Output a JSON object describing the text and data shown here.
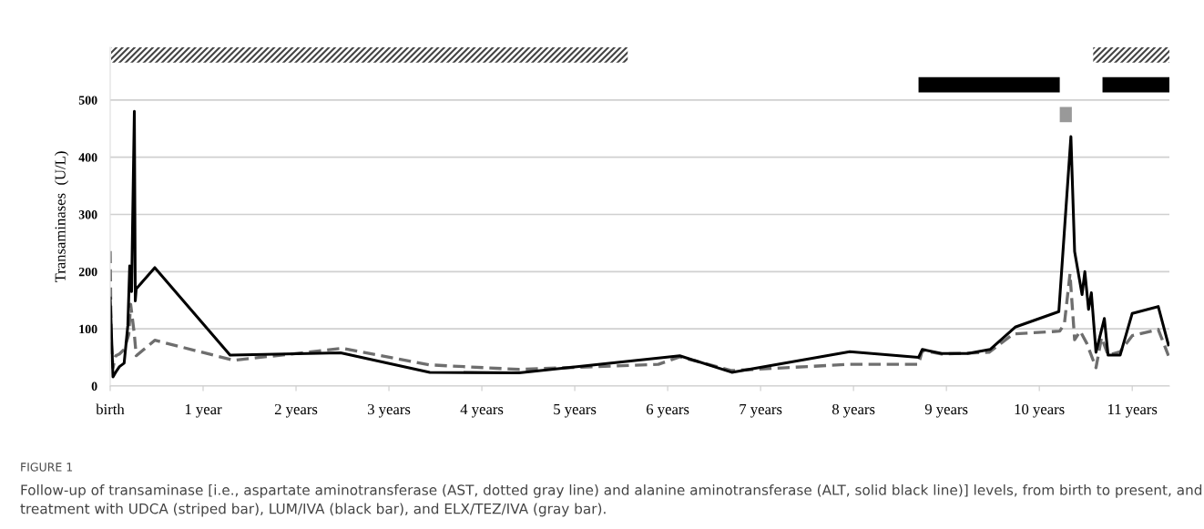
{
  "chart_data": {
    "type": "line",
    "ylabel": "Transaminases  (U/L)",
    "xlim": [
      0,
      11.4
    ],
    "ylim": [
      0,
      592
    ],
    "xticks": [
      {
        "value": 0,
        "label": "birth"
      },
      {
        "value": 1,
        "label": "1 year"
      },
      {
        "value": 2,
        "label": "2 years"
      },
      {
        "value": 3,
        "label": "3 years"
      },
      {
        "value": 4,
        "label": "4 years"
      },
      {
        "value": 5,
        "label": "5 years"
      },
      {
        "value": 6,
        "label": "6 years"
      },
      {
        "value": 7,
        "label": "7 years"
      },
      {
        "value": 8,
        "label": "8 years"
      },
      {
        "value": 9,
        "label": "9 years"
      },
      {
        "value": 10,
        "label": "10 years"
      },
      {
        "value": 11,
        "label": "11 years"
      }
    ],
    "yticks": [
      0,
      100,
      200,
      300,
      400,
      500
    ],
    "grid": "y",
    "legend": false,
    "marker": "none",
    "series": [
      {
        "color": "#6e6e6e",
        "line_style": "dashed",
        "x": [
          0,
          0.01,
          0.03,
          0.06,
          0.1,
          0.15,
          0.2,
          0.22,
          0.26,
          0.28,
          0.48,
          1.33,
          2.5,
          3.44,
          4.4,
          5.9,
          6.13,
          6.69,
          7.96,
          8.7,
          8.74,
          8.95,
          9.46,
          9.72,
          10.22,
          10.27,
          10.33,
          10.38,
          10.44,
          10.51,
          10.61,
          10.67,
          10.74,
          10.87,
          11.0,
          11.28,
          11.39
        ],
        "values": [
          236,
          80,
          32,
          53,
          56,
          64,
          90,
          143,
          90,
          53,
          80,
          45,
          66,
          37,
          29,
          38,
          51,
          27,
          38,
          38,
          62,
          56,
          59,
          91,
          96,
          109,
          196,
          81,
          96,
          75,
          32,
          85,
          54,
          60,
          88,
          99,
          53
        ]
      },
      {
        "color": "#000000",
        "line_style": "solid",
        "x": [
          0,
          0.03,
          0.07,
          0.1,
          0.15,
          0.19,
          0.21,
          0.23,
          0.26,
          0.27,
          0.28,
          0.48,
          1.29,
          2.48,
          3.44,
          4.4,
          6.13,
          6.69,
          7.96,
          8.7,
          8.74,
          8.95,
          9.23,
          9.47,
          9.74,
          10.21,
          10.34,
          10.38,
          10.46,
          10.49,
          10.53,
          10.56,
          10.61,
          10.7,
          10.74,
          10.87,
          11.0,
          11.28,
          11.39
        ],
        "values": [
          154,
          16,
          27,
          34,
          40,
          106,
          210,
          165,
          480,
          149,
          170,
          207,
          54,
          58,
          24,
          23,
          53,
          24,
          60,
          50,
          64,
          57,
          57,
          64,
          103,
          130,
          436,
          235,
          160,
          200,
          134,
          163,
          59,
          118,
          54,
          54,
          127,
          139,
          72
        ]
      }
    ],
    "bands": [
      {
        "axis": "x",
        "from": 0.01,
        "to": 5.57,
        "color": "#444444"
      },
      {
        "axis": "x",
        "from": 10.58,
        "to": 11.4,
        "color": "#444444"
      },
      {
        "axis": "x",
        "from": 8.7,
        "to": 10.22,
        "color": "#000000"
      },
      {
        "axis": "x",
        "from": 10.68,
        "to": 11.4,
        "color": "#000000"
      },
      {
        "axis": "x",
        "from": 10.22,
        "to": 10.35,
        "color": "#999999"
      }
    ],
    "annotations": [
      "FIGURE 1",
      "Follow-up of transaminase [i.e., aspartate aminotransferase (AST, dotted gray line) and alanine aminotransferase (ALT, solid black line)] levels, from birth to present, and treatment with UDCA (striped bar), LUM/IVA (black bar), and ELX/TEZ/IVA (gray bar)."
    ]
  }
}
